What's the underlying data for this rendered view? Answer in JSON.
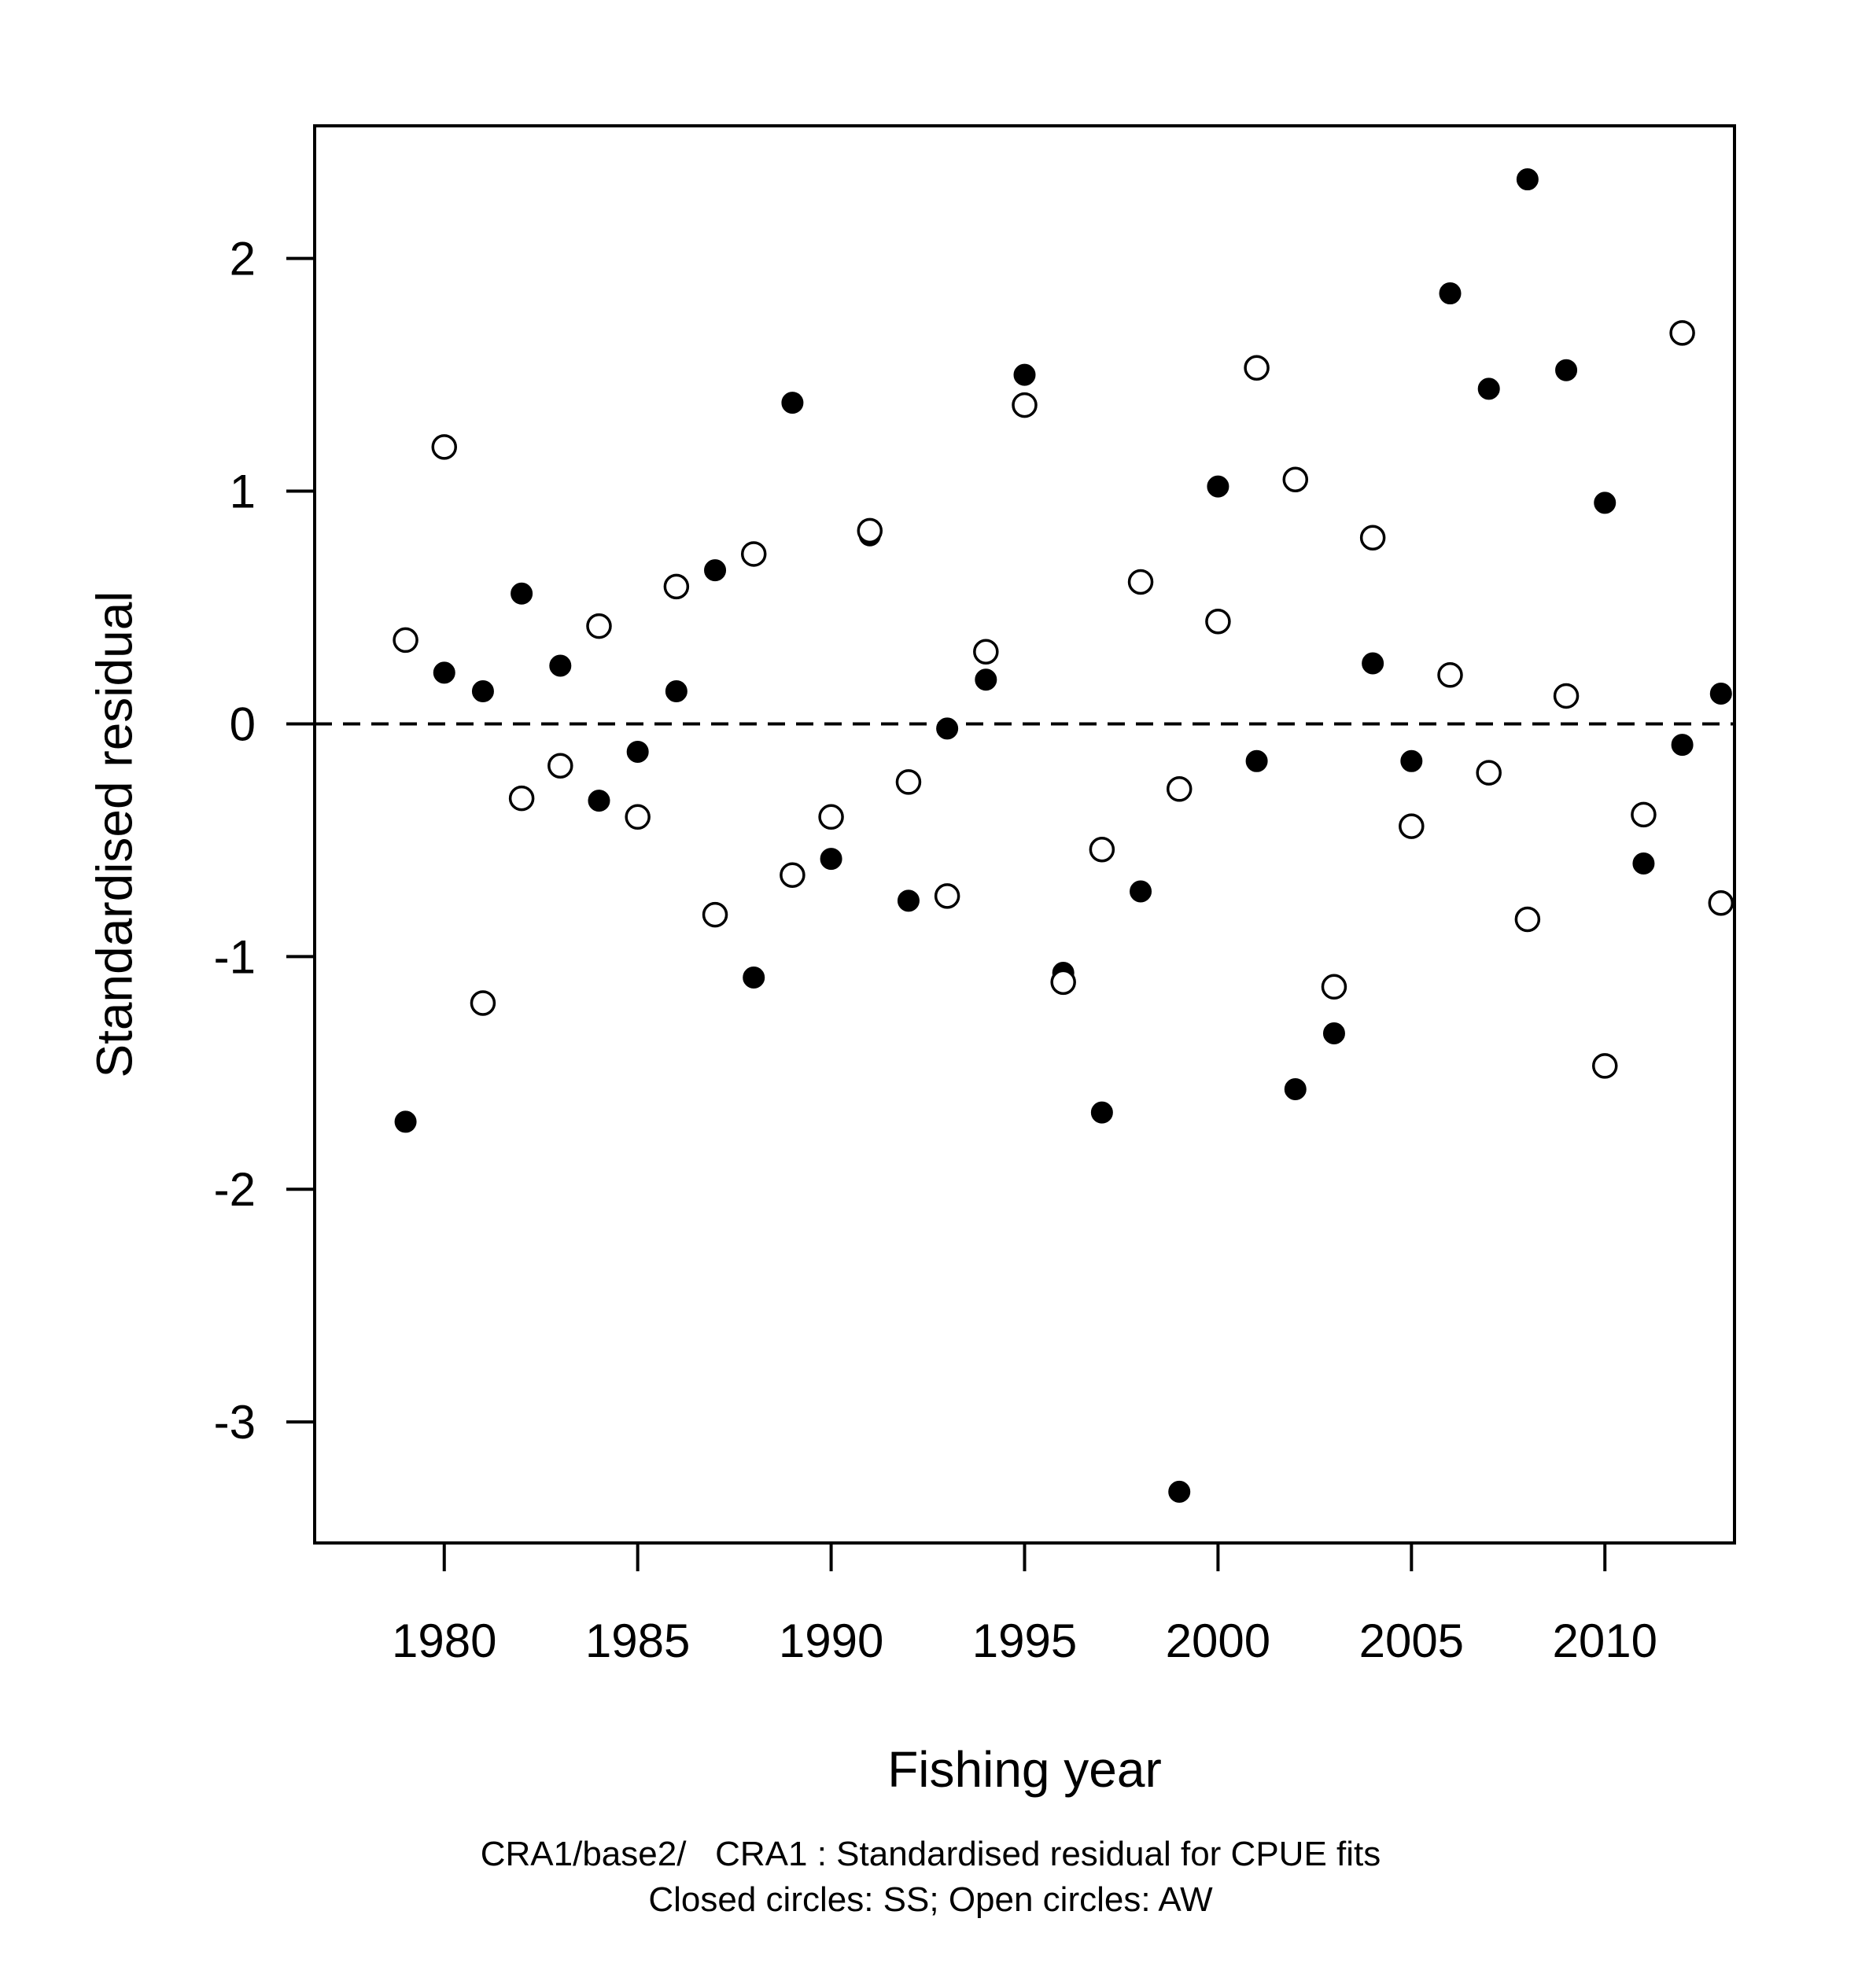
{
  "chart_data": {
    "type": "scatter",
    "xlabel": "Fishing year",
    "ylabel": "Standardised residual",
    "caption_line1": "CRA1/base2/   CRA1 : Standardised residual for CPUE fits",
    "caption_line2": "Closed circles: SS; Open circles: AW",
    "xlim": [
      1976.65,
      2013.35
    ],
    "ylim": [
      -3.52,
      2.57
    ],
    "x_ticks": [
      1980,
      1985,
      1990,
      1995,
      2000,
      2005,
      2010
    ],
    "x_tick_labels": [
      "1980",
      "1985",
      "1990",
      "1995",
      "2000",
      "2005",
      "2010"
    ],
    "y_ticks": [
      2,
      1,
      0,
      -1,
      -2,
      -3
    ],
    "y_tick_labels": [
      "2",
      "1",
      "0",
      "-1",
      "-2",
      "-3"
    ],
    "reference_line": {
      "y": 0,
      "style": "dashed"
    },
    "grid": false,
    "series": [
      {
        "marker": "closed-circle",
        "x": [
          1979,
          1980,
          1981,
          1982,
          1983,
          1984,
          1985,
          1986,
          1987,
          1988,
          1989,
          1990,
          1991,
          1992,
          1993,
          1994,
          1995,
          1996,
          1997,
          1998,
          1999,
          2000,
          2001,
          2002,
          2003,
          2004,
          2005,
          2006,
          2007,
          2008,
          2009,
          2010,
          2011,
          2012,
          2013
        ],
        "y": [
          -1.71,
          0.22,
          0.14,
          0.56,
          0.25,
          -0.33,
          -0.12,
          0.14,
          0.66,
          -1.09,
          1.38,
          -0.58,
          0.81,
          -0.76,
          -0.02,
          0.19,
          1.5,
          -1.07,
          -1.67,
          -0.72,
          -3.3,
          1.02,
          -0.16,
          -1.57,
          -1.33,
          0.26,
          -0.16,
          1.85,
          1.44,
          2.34,
          1.52,
          0.95,
          -0.6,
          -0.09,
          0.13
        ]
      },
      {
        "marker": "open-circle",
        "x": [
          1979,
          1980,
          1981,
          1982,
          1983,
          1984,
          1985,
          1986,
          1987,
          1988,
          1989,
          1990,
          1991,
          1992,
          1993,
          1994,
          1995,
          1996,
          1997,
          1998,
          1999,
          2000,
          2001,
          2002,
          2003,
          2004,
          2005,
          2006,
          2007,
          2008,
          2009,
          2010,
          2011,
          2012,
          2013
        ],
        "y": [
          0.36,
          1.19,
          -1.2,
          -0.32,
          -0.18,
          0.42,
          -0.4,
          0.59,
          -0.82,
          0.73,
          -0.65,
          -0.4,
          0.83,
          -0.25,
          -0.74,
          0.31,
          1.37,
          -1.11,
          -0.54,
          0.61,
          -0.28,
          0.44,
          1.53,
          1.05,
          -1.13,
          0.8,
          -0.44,
          0.21,
          -0.21,
          -0.84,
          0.12,
          -1.47,
          -0.39,
          1.68,
          -0.77
        ]
      }
    ]
  }
}
